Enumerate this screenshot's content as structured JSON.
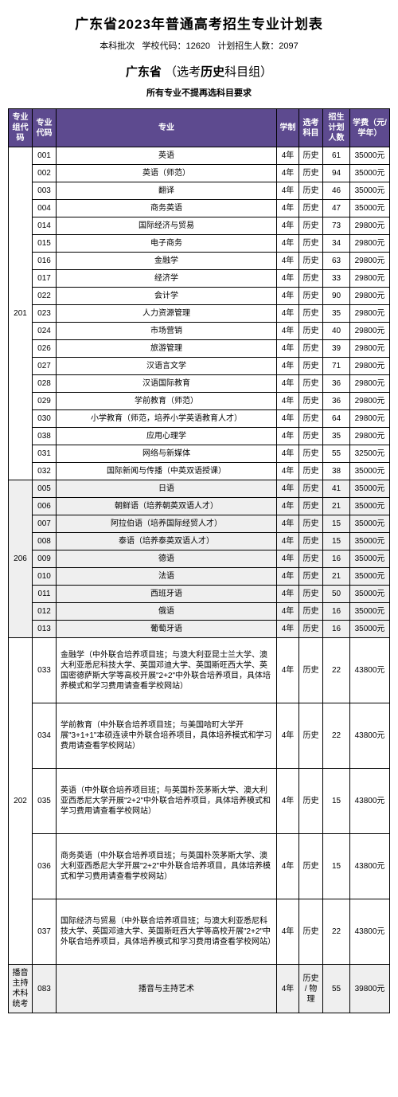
{
  "title": "广东省2023年普通高考招生专业计划表",
  "title_fontsize": 17,
  "subtitle_parts": {
    "batch": "本科批次",
    "school_code_label": "学校代码：12620",
    "plan_total_label": "计划招生人数：2097"
  },
  "subtitle_fontsize": 11,
  "province_line": {
    "prefix": "广东省",
    "open": "（",
    "label": "选考",
    "subject": "历史",
    "suffix": "科目组",
    "close": "）"
  },
  "province_fontsize": 15,
  "requirement": "所有专业不提再选科目要求",
  "requirement_fontsize": 11,
  "headers": {
    "group_code": "专业组代码",
    "major_code": "专业代码",
    "major": "专业",
    "duration": "学制",
    "subject": "选考科目",
    "plan": "招生计划人数",
    "fee": "学费（元/学年）"
  },
  "header_bg": "#5d4a8f",
  "header_fg": "#ffffff",
  "shade_bg": "#efefef",
  "border_color": "#000000",
  "groups": [
    {
      "code": "201",
      "shaded": false,
      "rows": [
        {
          "mc": "001",
          "major": "英语",
          "dur": "4年",
          "subj": "历史",
          "plan": "61",
          "fee": "35000元"
        },
        {
          "mc": "002",
          "major": "英语（师范）",
          "dur": "4年",
          "subj": "历史",
          "plan": "94",
          "fee": "35000元"
        },
        {
          "mc": "003",
          "major": "翻译",
          "dur": "4年",
          "subj": "历史",
          "plan": "46",
          "fee": "35000元"
        },
        {
          "mc": "004",
          "major": "商务英语",
          "dur": "4年",
          "subj": "历史",
          "plan": "47",
          "fee": "35000元"
        },
        {
          "mc": "014",
          "major": "国际经济与贸易",
          "dur": "4年",
          "subj": "历史",
          "plan": "73",
          "fee": "29800元"
        },
        {
          "mc": "015",
          "major": "电子商务",
          "dur": "4年",
          "subj": "历史",
          "plan": "34",
          "fee": "29800元"
        },
        {
          "mc": "016",
          "major": "金融学",
          "dur": "4年",
          "subj": "历史",
          "plan": "63",
          "fee": "29800元"
        },
        {
          "mc": "017",
          "major": "经济学",
          "dur": "4年",
          "subj": "历史",
          "plan": "33",
          "fee": "29800元"
        },
        {
          "mc": "022",
          "major": "会计学",
          "dur": "4年",
          "subj": "历史",
          "plan": "90",
          "fee": "29800元"
        },
        {
          "mc": "023",
          "major": "人力资源管理",
          "dur": "4年",
          "subj": "历史",
          "plan": "35",
          "fee": "29800元"
        },
        {
          "mc": "024",
          "major": "市场营销",
          "dur": "4年",
          "subj": "历史",
          "plan": "40",
          "fee": "29800元"
        },
        {
          "mc": "026",
          "major": "旅游管理",
          "dur": "4年",
          "subj": "历史",
          "plan": "39",
          "fee": "29800元"
        },
        {
          "mc": "027",
          "major": "汉语言文学",
          "dur": "4年",
          "subj": "历史",
          "plan": "71",
          "fee": "29800元"
        },
        {
          "mc": "028",
          "major": "汉语国际教育",
          "dur": "4年",
          "subj": "历史",
          "plan": "36",
          "fee": "29800元"
        },
        {
          "mc": "029",
          "major": "学前教育（师范）",
          "dur": "4年",
          "subj": "历史",
          "plan": "36",
          "fee": "29800元"
        },
        {
          "mc": "030",
          "major": "小学教育（师范，培养小学英语教育人才）",
          "dur": "4年",
          "subj": "历史",
          "plan": "64",
          "fee": "29800元"
        },
        {
          "mc": "038",
          "major": "应用心理学",
          "dur": "4年",
          "subj": "历史",
          "plan": "35",
          "fee": "29800元"
        },
        {
          "mc": "031",
          "major": "网络与新媒体",
          "dur": "4年",
          "subj": "历史",
          "plan": "55",
          "fee": "32500元"
        },
        {
          "mc": "032",
          "major": "国际新闻与传播（中英双语授课）",
          "dur": "4年",
          "subj": "历史",
          "plan": "38",
          "fee": "35000元"
        }
      ]
    },
    {
      "code": "206",
      "shaded": true,
      "rows": [
        {
          "mc": "005",
          "major": "日语",
          "dur": "4年",
          "subj": "历史",
          "plan": "41",
          "fee": "35000元"
        },
        {
          "mc": "006",
          "major": "朝鲜语（培养朝英双语人才）",
          "dur": "4年",
          "subj": "历史",
          "plan": "21",
          "fee": "35000元"
        },
        {
          "mc": "007",
          "major": "阿拉伯语（培养国际经贸人才）",
          "dur": "4年",
          "subj": "历史",
          "plan": "15",
          "fee": "35000元"
        },
        {
          "mc": "008",
          "major": "泰语（培养泰英双语人才）",
          "dur": "4年",
          "subj": "历史",
          "plan": "15",
          "fee": "35000元"
        },
        {
          "mc": "009",
          "major": "德语",
          "dur": "4年",
          "subj": "历史",
          "plan": "16",
          "fee": "35000元"
        },
        {
          "mc": "010",
          "major": "法语",
          "dur": "4年",
          "subj": "历史",
          "plan": "21",
          "fee": "35000元"
        },
        {
          "mc": "011",
          "major": "西班牙语",
          "dur": "4年",
          "subj": "历史",
          "plan": "50",
          "fee": "35000元"
        },
        {
          "mc": "012",
          "major": "俄语",
          "dur": "4年",
          "subj": "历史",
          "plan": "16",
          "fee": "35000元"
        },
        {
          "mc": "013",
          "major": "葡萄牙语",
          "dur": "4年",
          "subj": "历史",
          "plan": "16",
          "fee": "35000元"
        }
      ]
    },
    {
      "code": "202",
      "shaded": false,
      "long": true,
      "rows": [
        {
          "mc": "033",
          "major": "金融学（中外联合培养项目班；与澳大利亚昆士兰大学、澳大利亚悉尼科技大学、英国邓迪大学、英国斯旺西大学、英国密德萨斯大学等高校开展\"2+2\"中外联合培养项目，具体培养模式和学习费用请查看学校网站）",
          "dur": "4年",
          "subj": "历史",
          "plan": "22",
          "fee": "43800元"
        },
        {
          "mc": "034",
          "major": "学前教育（中外联合培养项目班；与美国哈町大学开展\"3+1+1\"本硕连读中外联合培养项目，具体培养模式和学习费用请查看学校网站）",
          "dur": "4年",
          "subj": "历史",
          "plan": "22",
          "fee": "43800元"
        },
        {
          "mc": "035",
          "major": "英语（中外联合培养项目班；与英国朴茨茅斯大学、澳大利亚西悉尼大学开展\"2+2\"中外联合培养项目，具体培养模式和学习费用请查看学校网站）",
          "dur": "4年",
          "subj": "历史",
          "plan": "15",
          "fee": "43800元"
        },
        {
          "mc": "036",
          "major": "商务英语（中外联合培养项目班；与英国朴茨茅斯大学、澳大利亚西悉尼大学开展\"2+2\"中外联合培养项目，具体培养模式和学习费用请查看学校网站）",
          "dur": "4年",
          "subj": "历史",
          "plan": "15",
          "fee": "43800元"
        },
        {
          "mc": "037",
          "major": "国际经济与贸易（中外联合培养项目班；与澳大利亚悉尼科技大学、英国邓迪大学、英国斯旺西大学等高校开展\"2+2\"中外联合培养项目，具体培养模式和学习费用请查看学校网站）",
          "dur": "4年",
          "subj": "历史",
          "plan": "22",
          "fee": "43800元"
        }
      ]
    },
    {
      "code": "播音主持术科统考",
      "shaded": true,
      "rows": [
        {
          "mc": "083",
          "major": "播音与主持艺术",
          "dur": "4年",
          "subj": "历史 / 物理",
          "plan": "55",
          "fee": "39800元"
        }
      ]
    }
  ]
}
